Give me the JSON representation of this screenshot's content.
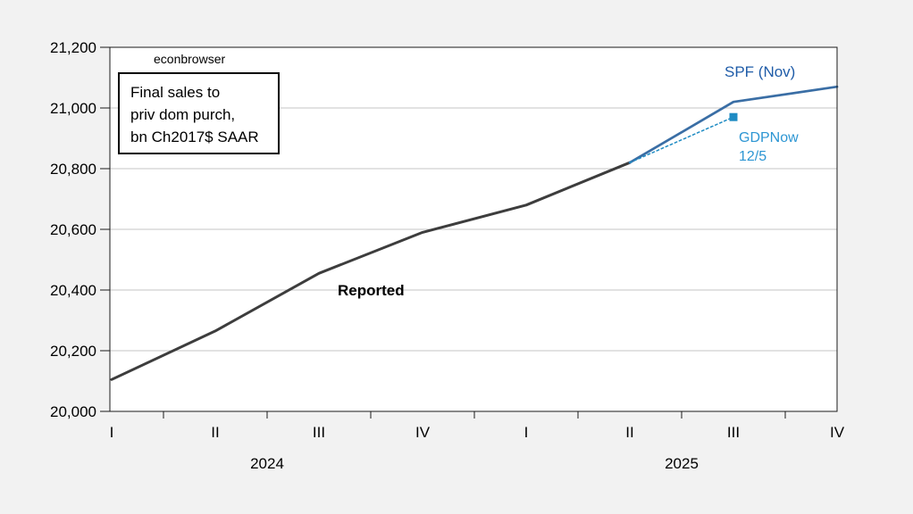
{
  "figure": {
    "background": "#F2F2F2",
    "watermark": "econbrowser"
  },
  "note_box": {
    "lines": [
      "Final sales to",
      "priv dom purch,",
      "bn Ch2017$ SAAR"
    ]
  },
  "series_labels": {
    "reported": "Reported",
    "spf": "SPF (Nov)",
    "gdpnow_line1": "GDPNow",
    "gdpnow_line2": "12/5"
  },
  "chart_data": {
    "type": "line",
    "title": "Final sales to priv dom purch, bn Ch2017$ SAAR",
    "ylim": [
      20000,
      21200
    ],
    "grid": "horizontal",
    "legend_position": "inline-annotations",
    "y_ticks": [
      {
        "value": 20000,
        "label": "20,000"
      },
      {
        "value": 20200,
        "label": "20,200"
      },
      {
        "value": 20400,
        "label": "20,400"
      },
      {
        "value": 20600,
        "label": "20,600"
      },
      {
        "value": 20800,
        "label": "20,800"
      },
      {
        "value": 21000,
        "label": "21,000"
      },
      {
        "value": 21200,
        "label": "21,200"
      }
    ],
    "x_quarter_labels": [
      "I",
      "II",
      "III",
      "IV",
      "I",
      "II",
      "III",
      "IV"
    ],
    "x_year_groups": [
      {
        "label": "2024",
        "start_index": 0,
        "end_index": 3
      },
      {
        "label": "2025",
        "start_index": 4,
        "end_index": 7
      }
    ],
    "series": [
      {
        "name": "Reported",
        "color": "#3D3D3D",
        "line_style": "solid",
        "line_width": 3,
        "x_index": [
          0,
          1,
          2,
          3,
          4,
          5
        ],
        "x_labels": [
          "2024 I",
          "2024 II",
          "2024 III",
          "2024 IV",
          "2025 I",
          "2025 II"
        ],
        "values": [
          20105,
          20265,
          20455,
          20590,
          20680,
          20820
        ]
      },
      {
        "name": "SPF (Nov)",
        "color": "#3A6EA5",
        "line_style": "solid",
        "line_width": 2.75,
        "x_index": [
          5,
          6,
          7
        ],
        "x_labels": [
          "2025 II",
          "2025 III",
          "2025 IV"
        ],
        "values": [
          20820,
          21020,
          21070
        ]
      },
      {
        "name": "GDPNow 12/5",
        "color": "#1E8BC3",
        "line_style": "dashed",
        "line_width": 1.5,
        "end_marker": "square",
        "x_index": [
          5,
          6
        ],
        "x_labels": [
          "2025 II",
          "2025 III"
        ],
        "values": [
          20820,
          20970
        ]
      }
    ],
    "colors": {
      "figure_bg": "#F2F2F2",
      "plot_bg": "#FFFFFF",
      "gridline": "#C6C6C6",
      "plot_border": "#1A1A1A",
      "axis_text": "#000000",
      "reported_label": "#000000",
      "spf_label": "#1F5CA8",
      "gdpnow_label": "#2D96D3"
    }
  }
}
